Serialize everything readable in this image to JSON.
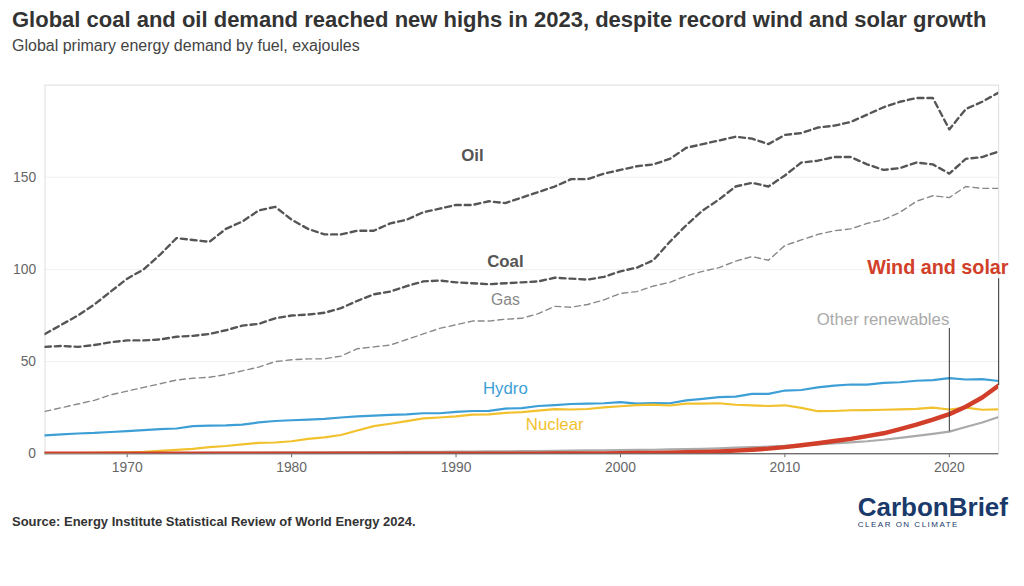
{
  "chart_data": {
    "type": "line",
    "title": "Global coal and oil demand reached new highs in 2023, despite record wind and solar growth",
    "subtitle": "Global primary energy demand by fuel, exajoules",
    "source": "Source: Energy Institute Statistical Review of World Energy 2024.",
    "logo": "CarbonBrief",
    "logo_tagline": "CLEAR ON CLIMATE",
    "x": [
      1965,
      1966,
      1967,
      1968,
      1969,
      1970,
      1971,
      1972,
      1973,
      1974,
      1975,
      1976,
      1977,
      1978,
      1979,
      1980,
      1981,
      1982,
      1983,
      1984,
      1985,
      1986,
      1987,
      1988,
      1989,
      1990,
      1991,
      1992,
      1993,
      1994,
      1995,
      1996,
      1997,
      1998,
      1999,
      2000,
      2001,
      2002,
      2003,
      2004,
      2005,
      2006,
      2007,
      2008,
      2009,
      2010,
      2011,
      2012,
      2013,
      2014,
      2015,
      2016,
      2017,
      2018,
      2019,
      2020,
      2021,
      2022,
      2023
    ],
    "series": [
      {
        "name": "Oil",
        "color": "#555555",
        "line_style": "dashed",
        "values": [
          65,
          70,
          75,
          81,
          88,
          95,
          100,
          108,
          117,
          116,
          115,
          122,
          126,
          132,
          134,
          127,
          122,
          119,
          119,
          121,
          121,
          125,
          127,
          131,
          133,
          135,
          135,
          137,
          136,
          139,
          142,
          145,
          149,
          149,
          152,
          154,
          156,
          157,
          160,
          166,
          168,
          170,
          172,
          171,
          168,
          173,
          174,
          177,
          178,
          180,
          184,
          188,
          191,
          193,
          193,
          176,
          187,
          191,
          196
        ]
      },
      {
        "name": "Coal",
        "color": "#555555",
        "line_style": "dashed",
        "values": [
          58,
          58.5,
          58,
          59,
          60.5,
          61.5,
          61.5,
          62,
          63.5,
          64,
          65,
          67,
          69.5,
          70.5,
          73.5,
          75,
          75.5,
          76.5,
          79,
          83,
          86.5,
          88,
          91,
          93.5,
          94,
          93,
          92.5,
          92,
          92.5,
          93,
          93.5,
          95.5,
          95,
          94.5,
          96,
          99,
          101,
          105,
          115,
          124,
          132,
          138,
          145,
          147,
          145,
          151,
          158,
          159,
          161,
          161,
          157,
          154,
          155,
          158,
          157,
          152,
          160,
          161,
          164
        ]
      },
      {
        "name": "Gas",
        "color": "#888888",
        "line_style": "dashed",
        "values": [
          23,
          25,
          27,
          29,
          32,
          34,
          36,
          38,
          40,
          41,
          41.5,
          43,
          45,
          47,
          50,
          51,
          51.5,
          51.5,
          53,
          57,
          58,
          59,
          62,
          65,
          68,
          70,
          72,
          72,
          73,
          73.5,
          76,
          80,
          79.5,
          81,
          83.5,
          87,
          88,
          91,
          93,
          96.5,
          99,
          101,
          104.5,
          107,
          105,
          113,
          116,
          119,
          121,
          122,
          125,
          127,
          131,
          137,
          140,
          139,
          145,
          144,
          144
        ]
      },
      {
        "name": "Hydro",
        "color": "#3d9fd6",
        "line_style": "solid",
        "values": [
          10,
          10.5,
          11,
          11.3,
          11.8,
          12.3,
          12.8,
          13.4,
          13.7,
          15,
          15.3,
          15.4,
          15.8,
          17,
          17.8,
          18.2,
          18.5,
          18.9,
          19.7,
          20.3,
          20.7,
          21.1,
          21.4,
          22,
          22,
          22.7,
          23.2,
          23.3,
          24.5,
          24.8,
          25.9,
          26.4,
          27,
          27.2,
          27.4,
          28,
          27.2,
          27.5,
          27.4,
          29,
          29.8,
          30.7,
          31,
          32.5,
          32.5,
          34.3,
          34.6,
          36,
          37,
          37.6,
          37.5,
          38.5,
          38.8,
          39.6,
          40,
          41,
          40.3,
          40.5,
          39.5
        ]
      },
      {
        "name": "Nuclear",
        "color": "#f2c12e",
        "line_style": "solid",
        "values": [
          0.2,
          0.3,
          0.4,
          0.5,
          0.6,
          0.8,
          1.1,
          1.6,
          2.1,
          2.7,
          3.6,
          4.2,
          5.1,
          5.9,
          6.1,
          6.8,
          8.1,
          8.9,
          10.2,
          12.6,
          15,
          16.3,
          17.7,
          19.2,
          19.7,
          20.3,
          21.2,
          21.4,
          22.2,
          22.6,
          23.4,
          24.2,
          24,
          24.3,
          25.2,
          25.8,
          26.4,
          26.7,
          26.2,
          27.2,
          27.2,
          27.4,
          26.6,
          26.3,
          25.9,
          26.3,
          24.9,
          23.1,
          23.2,
          23.6,
          23.7,
          23.9,
          24.1,
          24.4,
          25,
          24,
          25,
          23.9,
          24.1
        ]
      },
      {
        "name": "Other renewables",
        "color": "#aaaaaa",
        "line_style": "solid",
        "values": [
          0.2,
          0.2,
          0.2,
          0.3,
          0.3,
          0.3,
          0.3,
          0.4,
          0.4,
          0.4,
          0.5,
          0.5,
          0.5,
          0.5,
          0.6,
          0.6,
          0.7,
          0.7,
          0.8,
          0.8,
          0.9,
          0.9,
          1,
          1,
          1.1,
          1.2,
          1.2,
          1.3,
          1.3,
          1.4,
          1.5,
          1.6,
          1.7,
          1.8,
          1.9,
          2,
          2.1,
          2.2,
          2.4,
          2.5,
          2.7,
          3,
          3.3,
          3.6,
          3.9,
          4.3,
          4.7,
          5.1,
          5.6,
          6.2,
          6.8,
          7.6,
          8.6,
          9.7,
          10.8,
          12,
          14.5,
          17,
          20
        ]
      },
      {
        "name": "Wind and solar",
        "color": "#d13f2a",
        "line_style": "solid",
        "values": [
          0,
          0,
          0,
          0,
          0,
          0,
          0,
          0,
          0,
          0,
          0,
          0,
          0,
          0,
          0,
          0,
          0,
          0,
          0,
          0,
          0.01,
          0.02,
          0.02,
          0.03,
          0.03,
          0.04,
          0.05,
          0.05,
          0.06,
          0.07,
          0.08,
          0.1,
          0.12,
          0.15,
          0.2,
          0.3,
          0.4,
          0.5,
          0.6,
          0.8,
          1,
          1.3,
          1.7,
          2.2,
          2.8,
          3.6,
          4.6,
          5.7,
          6.9,
          8.1,
          9.6,
          11.1,
          13.4,
          15.8,
          18.5,
          21.5,
          25.5,
          30.5,
          37
        ]
      }
    ],
    "xlim": [
      1965,
      2023
    ],
    "xticks": [
      1970,
      1980,
      1990,
      2000,
      2010,
      2020
    ],
    "ylim": [
      0,
      200
    ],
    "yticks": [
      0,
      50,
      100,
      150
    ],
    "grid": true
  }
}
